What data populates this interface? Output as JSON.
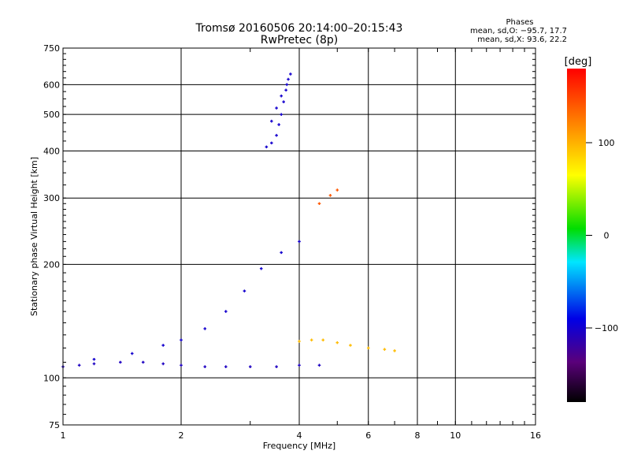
{
  "chart_data": {
    "type": "scatter",
    "title": "Tromsø 20160506 20:14:00–20:15:43",
    "subtitle": "RwPretec (8p)",
    "xlabel": "Frequency [MHz]",
    "ylabel": "Stationary phase Virtual Height [km]",
    "x_scale": "log",
    "y_scale": "log",
    "xlim": [
      1,
      16
    ],
    "ylim": [
      75,
      750
    ],
    "x_ticks": [
      1,
      2,
      4,
      6,
      8,
      10,
      16
    ],
    "y_ticks": [
      75,
      100,
      200,
      300,
      400,
      500,
      600,
      750
    ],
    "x_grid": [
      2,
      4,
      6,
      8,
      10
    ],
    "y_grid": [
      100,
      200,
      300,
      400,
      500,
      600
    ],
    "stats": {
      "title": "Phases",
      "line_o": "mean, sd,O: −95.7, 17.7",
      "line_x": "mean, sd,X:  93.6, 22.2"
    },
    "colorbar": {
      "label": "[deg]",
      "range": [
        -180,
        180
      ],
      "ticks": [
        {
          "value": 100,
          "label": "100"
        },
        {
          "value": 0,
          "label": "0"
        },
        {
          "value": -100,
          "label": "−100"
        }
      ]
    },
    "series": [
      {
        "trace": "O-mode F-layer echo (blue)",
        "phase_deg": -100,
        "x": [
          3.3,
          3.4,
          3.5,
          3.55,
          3.6,
          3.65,
          3.7,
          3.75,
          3.8,
          3.72,
          3.6,
          3.5,
          3.4
        ],
        "y": [
          410,
          420,
          440,
          470,
          500,
          540,
          580,
          620,
          640,
          600,
          560,
          520,
          480
        ]
      },
      {
        "trace": "O-mode E/F1 low-height echo (blue)",
        "phase_deg": -105,
        "x": [
          1.0,
          1.1,
          1.2,
          1.4,
          1.6,
          1.8,
          2.0,
          2.3,
          2.6,
          3.0,
          3.5,
          4.0,
          4.5
        ],
        "y": [
          107,
          108,
          109,
          110,
          110,
          109,
          108,
          107,
          107,
          107,
          107,
          108,
          108
        ]
      },
      {
        "trace": "O-mode spread echo (blue)",
        "phase_deg": -100,
        "x": [
          1.2,
          1.5,
          1.8,
          2.0,
          2.3,
          2.6,
          2.9,
          3.2,
          3.6,
          4.0
        ],
        "y": [
          112,
          116,
          122,
          126,
          135,
          150,
          170,
          195,
          215,
          230
        ]
      },
      {
        "trace": "X-mode echo (yellow)",
        "phase_deg": 95,
        "x": [
          4.0,
          4.3,
          4.6,
          5.0,
          5.4,
          6.0,
          6.6,
          7.0
        ],
        "y": [
          125,
          126,
          126,
          124,
          122,
          120,
          119,
          118
        ]
      },
      {
        "trace": "X-mode upper echo (orange)",
        "phase_deg": 140,
        "x": [
          4.5,
          4.8,
          5.0
        ],
        "y": [
          290,
          305,
          315
        ]
      }
    ]
  }
}
